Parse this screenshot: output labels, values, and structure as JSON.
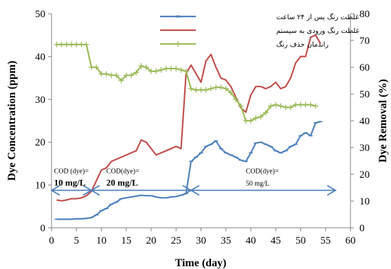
{
  "chart_data": {
    "type": "line",
    "title": "",
    "xlabel": "Time (day)",
    "ylabel_left": "Dye Concentration (ppm)",
    "ylabel_right": "Dye Removal (%)",
    "xlim": [
      0,
      60
    ],
    "ylim_left": [
      0,
      50
    ],
    "ylim_right": [
      0,
      80
    ],
    "x_ticks": [
      "0",
      "5",
      "10",
      "15",
      "20",
      "25",
      "30",
      "35",
      "40",
      "45",
      "50",
      "55",
      "60"
    ],
    "y_left_ticks": [
      "0",
      "10",
      "20",
      "30",
      "40",
      "50"
    ],
    "y_right_ticks": [
      "0",
      "10",
      "20",
      "30",
      "40",
      "50",
      "60",
      "70",
      "80"
    ],
    "grid": false,
    "legend_position": "top-right",
    "series": [
      {
        "name": "غلظت رنگ پس از ۲۴ ساعت",
        "color": "#4f81bd",
        "axis": "left",
        "x": [
          1,
          2,
          3,
          4,
          5,
          6,
          7,
          8,
          9,
          10,
          11,
          12,
          13,
          14,
          15,
          16,
          17,
          18,
          19,
          20,
          21,
          22,
          23,
          24,
          25,
          26,
          27,
          28,
          29,
          30,
          31,
          32,
          33,
          34,
          35,
          36,
          37,
          38,
          39,
          40,
          41,
          42,
          43,
          44,
          45,
          46,
          47,
          48,
          49,
          50,
          51,
          52,
          53,
          54
        ],
        "y": [
          2,
          2,
          2,
          2,
          2.1,
          2.1,
          2.2,
          2.4,
          3,
          4,
          4.5,
          5.5,
          6,
          6.8,
          7,
          7.2,
          7.4,
          7.6,
          7.5,
          7.5,
          7.2,
          7.0,
          7.0,
          7.2,
          7.3,
          7.6,
          8,
          15.5,
          16.5,
          17.5,
          19,
          19.5,
          20.3,
          18.5,
          17.5,
          17,
          16.5,
          15.8,
          15.5,
          17.5,
          19.8,
          20,
          19.5,
          19,
          18,
          17.5,
          18,
          19,
          19.5,
          21.5,
          22.2,
          21.5,
          24.5,
          24.8
        ]
      },
      {
        "name": "غلظت رنگ ورودی به سیستم",
        "color": "#c0504d",
        "axis": "left",
        "x": [
          1,
          2,
          3,
          4,
          5,
          6,
          7,
          8,
          9,
          10,
          11,
          12,
          13,
          14,
          15,
          16,
          17,
          18,
          19,
          20,
          21,
          22,
          23,
          24,
          25,
          26,
          27,
          28,
          29,
          30,
          31,
          32,
          33,
          34,
          35,
          36,
          37,
          38,
          39,
          40,
          41,
          42,
          43,
          44,
          45,
          46,
          47,
          48,
          49,
          50,
          51,
          52,
          53,
          54
        ],
        "y": [
          6.5,
          6.3,
          6.5,
          6.8,
          6.8,
          7,
          7.5,
          8.5,
          11,
          13.5,
          14,
          15.5,
          16,
          16.5,
          17,
          17.5,
          18,
          20.5,
          20,
          18.5,
          17,
          17.5,
          18,
          18.5,
          19,
          18.5,
          36,
          38,
          36,
          34,
          39,
          40.5,
          37.5,
          35,
          34.5,
          33,
          30.5,
          28,
          27,
          31,
          33,
          33,
          32.5,
          33,
          34,
          32.5,
          33,
          35,
          38.5,
          40,
          40,
          44.5,
          45,
          43
        ]
      },
      {
        "name": "راندمان حذف رنگ",
        "color": "#9bbb59",
        "axis": "right",
        "x": [
          1,
          2,
          3,
          4,
          5,
          6,
          7,
          8,
          9,
          10,
          11,
          12,
          13,
          14,
          15,
          16,
          17,
          18,
          19,
          20,
          21,
          22,
          23,
          24,
          25,
          26,
          27,
          28,
          29,
          30,
          31,
          32,
          33,
          34,
          35,
          36,
          37,
          38,
          39,
          40,
          41,
          42,
          43,
          44,
          45,
          46,
          47,
          48,
          49,
          50,
          51,
          52,
          53
        ],
        "y": [
          68.5,
          68.5,
          68.5,
          68.5,
          68.5,
          68.5,
          68.5,
          60,
          60,
          57.5,
          57.5,
          57,
          57,
          55,
          57,
          57,
          58,
          60.5,
          60,
          58.5,
          58.5,
          59,
          59.5,
          59.5,
          59.5,
          59,
          58.5,
          52,
          51.5,
          51.5,
          51.5,
          52,
          52.5,
          52.5,
          52,
          50.5,
          48,
          45.5,
          40,
          40,
          41,
          41.5,
          43,
          45.5,
          46,
          45.5,
          45,
          45,
          46,
          46,
          46,
          46,
          45.5
        ]
      }
    ],
    "annotations": [
      {
        "line1": "COD (dye)=",
        "line2": "10 mg/L",
        "x": 0.5,
        "y_right": 14,
        "start": 0,
        "end": 8
      },
      {
        "line1": "COD(dye)=",
        "line2": "20 mg/L",
        "x": 11,
        "y_right": 14,
        "start": 8,
        "end": 28
      },
      {
        "line1": "COD(dye)=",
        "line2": "50 mg/L",
        "x": 39,
        "y_right": 14,
        "start": 28,
        "end": 57
      }
    ]
  }
}
